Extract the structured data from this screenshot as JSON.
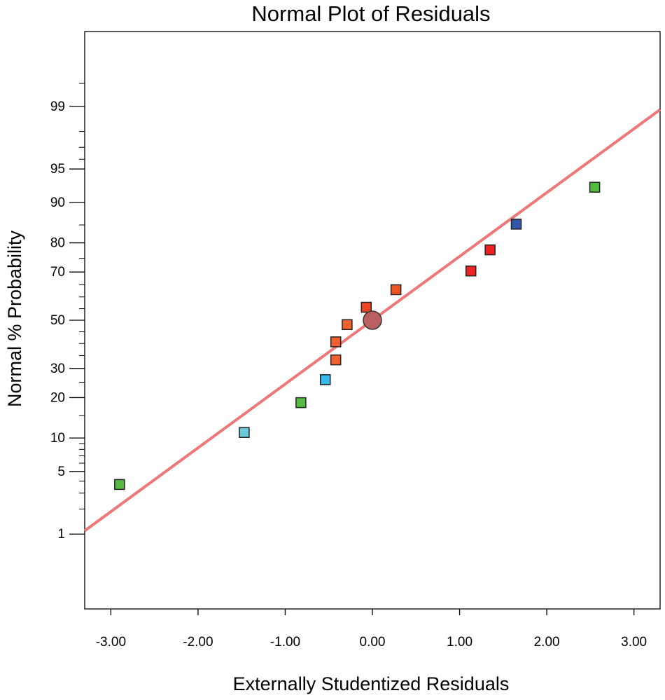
{
  "chart_data": {
    "type": "scatter",
    "title": "Normal Plot of Residuals",
    "xlabel": "Externally Studentized Residuals",
    "ylabel": "Normal % Probability",
    "xlim": [
      -3.3,
      3.3
    ],
    "ylim_percent": [
      0.1,
      99.9
    ],
    "y_scale": "normal-probability",
    "x_ticks": [
      -3.0,
      -2.0,
      -1.0,
      0.0,
      1.0,
      2.0,
      3.0
    ],
    "x_tick_labels": [
      "-3.00",
      "-2.00",
      "-1.00",
      "0.00",
      "1.00",
      "2.00",
      "3.00"
    ],
    "y_ticks": [
      1,
      5,
      10,
      20,
      30,
      50,
      70,
      80,
      90,
      95,
      99
    ],
    "y_tick_labels": [
      "1",
      "5",
      "10",
      "20",
      "30",
      "50",
      "70",
      "80",
      "90",
      "95",
      "99"
    ],
    "y_minor_ticks": [
      2,
      3,
      4,
      6,
      7,
      8,
      9,
      15,
      25,
      35,
      40,
      45,
      55,
      60,
      65,
      75,
      85,
      96,
      97,
      98,
      99.5
    ],
    "fit_line": {
      "color": "#ee7777",
      "points": [
        [
          -3.3,
          1.1
        ],
        [
          3.3,
          98.9
        ]
      ]
    },
    "series": [
      {
        "name": "Residuals",
        "points": [
          {
            "x": -2.9,
            "y": 3.7,
            "color": "#55bb44"
          },
          {
            "x": -1.47,
            "y": 11.1,
            "color": "#66c8d8"
          },
          {
            "x": -0.82,
            "y": 18.5,
            "color": "#55bb44"
          },
          {
            "x": -0.54,
            "y": 25.9,
            "color": "#33bbee"
          },
          {
            "x": -0.42,
            "y": 33.3,
            "color": "#f06030"
          },
          {
            "x": -0.42,
            "y": 40.7,
            "color": "#f06030"
          },
          {
            "x": -0.29,
            "y": 48.1,
            "color": "#f06030"
          },
          {
            "x": -0.07,
            "y": 55.6,
            "color": "#ee4422"
          },
          {
            "x": 0.27,
            "y": 63.0,
            "color": "#ee5522"
          },
          {
            "x": 1.13,
            "y": 70.4,
            "color": "#ee2222"
          },
          {
            "x": 1.35,
            "y": 77.8,
            "color": "#ee2222"
          },
          {
            "x": 1.65,
            "y": 85.2,
            "color": "#3355aa"
          },
          {
            "x": 2.55,
            "y": 92.6,
            "color": "#55bb44"
          }
        ]
      }
    ],
    "highlight_point": {
      "x": 0.0,
      "y": 50.0,
      "color": "#bb6060",
      "shape": "circle"
    }
  }
}
